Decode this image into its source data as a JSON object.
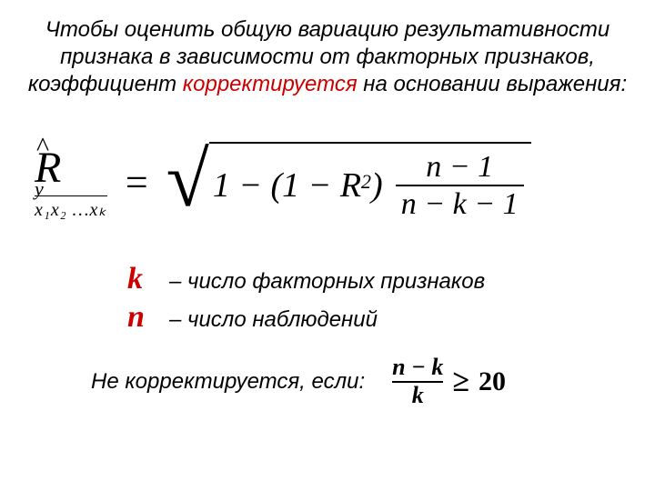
{
  "title": {
    "part1": "Чтобы оценить общую вариацию результативности признака в зависимости от факторных признаков, коэффициент ",
    "highlight": "корректируется",
    "part2": " на основании выражения:"
  },
  "formula_main": {
    "lhs": {
      "hat": "^",
      "symbol": "R",
      "sub_y": "y",
      "sub_x": "x₁x₂ …xₖ"
    },
    "equals": "=",
    "radicand_text": "1 − (1 − R",
    "radicand_sup": "2",
    "radicand_close": ")",
    "frac_num": "n − 1",
    "frac_den": "n − k − 1"
  },
  "defs": {
    "k_sym": "k",
    "k_text": "– число факторных признаков",
    "n_sym": "n",
    "n_text": "– число наблюдений"
  },
  "condition": {
    "text": "Не корректируется, если:",
    "frac_num": "n − k",
    "frac_den": "k",
    "op": "≥",
    "rhs": "20"
  },
  "colors": {
    "highlight": "#cc0000",
    "text": "#000000",
    "bg": "#ffffff"
  }
}
